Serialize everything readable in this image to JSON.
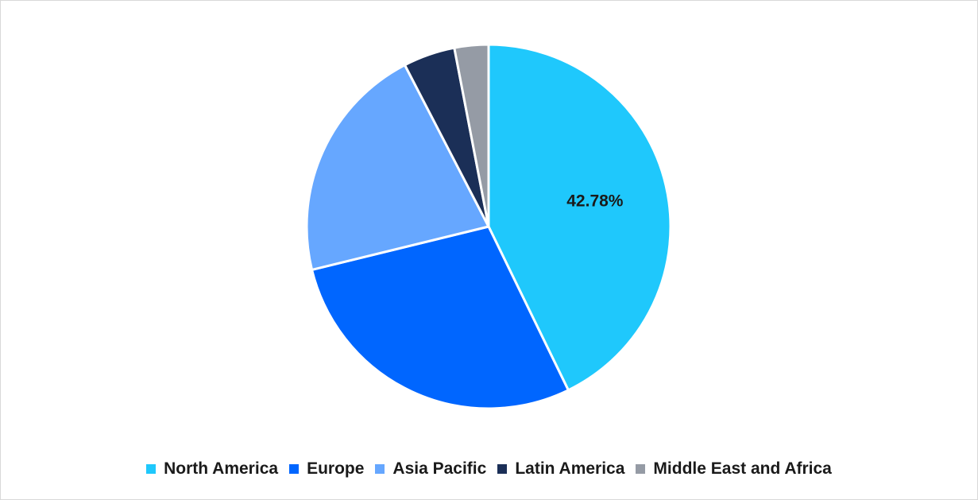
{
  "chart_data": {
    "type": "pie",
    "title": "",
    "slices": [
      {
        "label": "North America",
        "value": 42.78,
        "color": "#1FC8FC",
        "data_label": "42.78%"
      },
      {
        "label": "Europe",
        "value": 28.4,
        "color": "#0066FF",
        "data_label": ""
      },
      {
        "label": "Asia Pacific",
        "value": 21.2,
        "color": "#66A7FF",
        "data_label": ""
      },
      {
        "label": "Latin America",
        "value": 4.6,
        "color": "#1B2F57",
        "data_label": ""
      },
      {
        "label": "Middle East and Africa",
        "value": 3.02,
        "color": "#959BA5",
        "data_label": ""
      }
    ],
    "legend_position": "bottom"
  }
}
